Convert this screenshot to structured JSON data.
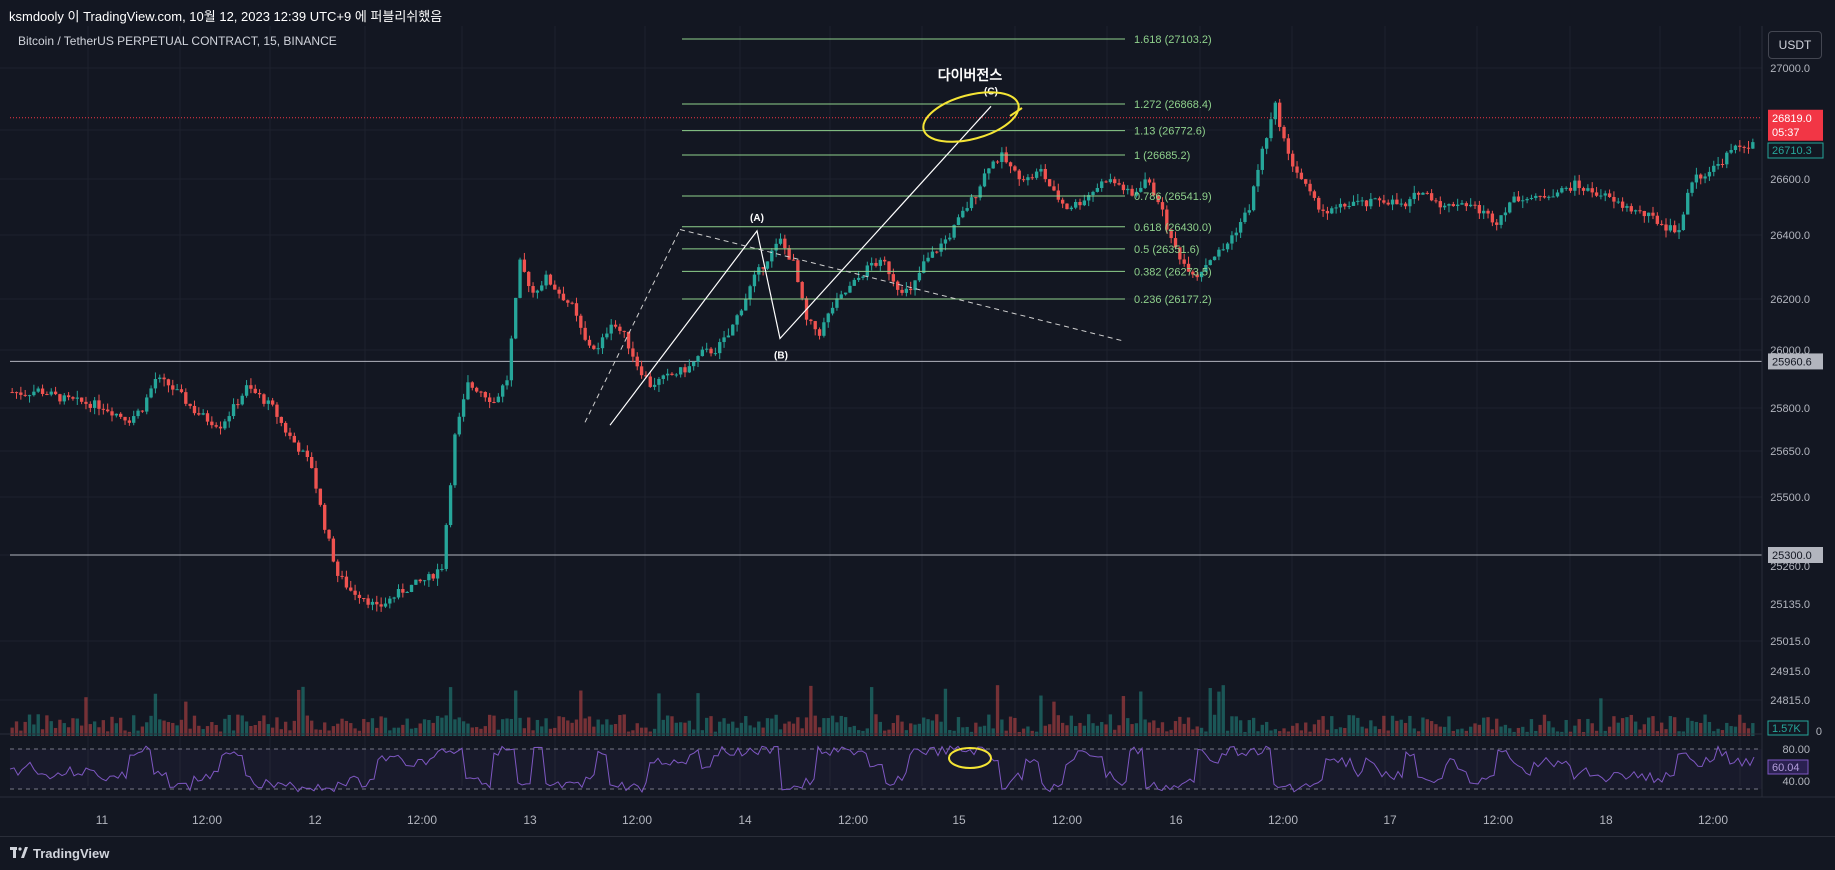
{
  "header": {
    "caption": "ksmdooly 이 TradingView.com, 10월 12, 2023 12:39 UTC+9 에 퍼블리쉬했음"
  },
  "chart_title": "Bitcoin / TetherUS PERPETUAL CONTRACT, 15, BINANCE",
  "currency_button": "USDT",
  "footer": {
    "brand": "TradingView"
  },
  "colors": {
    "up": "#26a69a",
    "down": "#ef5350",
    "fib": "#8fd18c",
    "rsi": "#7e57c2",
    "annotation": "#f5e535",
    "bg": "#131722"
  },
  "chart_data": {
    "type": "candlestick",
    "title": "Bitcoin / TetherUS PERPETUAL CONTRACT, 15, BINANCE",
    "price_ticks": [
      "27000.0",
      "26600.0",
      "26400.0",
      "26200.0",
      "26000.0",
      "25800.0",
      "25650.0",
      "25500.0",
      "25260.0",
      "25135.0",
      "25015.0",
      "24915.0",
      "24815.0"
    ],
    "volume_tick": "0",
    "time_ticks": [
      "11",
      "12:00",
      "12",
      "12:00",
      "13",
      "12:00",
      "14",
      "12:00",
      "15",
      "12:00",
      "16",
      "12:00",
      "17",
      "12:00",
      "18",
      "12:00"
    ],
    "last_price": {
      "price": "26819.0",
      "countdown": "05:37"
    },
    "secondary_price": "26710.3",
    "volume_label": "1.57K",
    "horizontal_levels": [
      {
        "price": 25960.6,
        "label": "25960.6"
      },
      {
        "price": 25300.0,
        "label": "25300.0"
      }
    ],
    "fibonacci": [
      {
        "label": "1.618 (27103.2)",
        "price": 27103.2
      },
      {
        "label": "1.272 (26868.4)",
        "price": 26868.4
      },
      {
        "label": "1.13 (26772.6)",
        "price": 26772.6
      },
      {
        "label": "1 (26685.2)",
        "price": 26685.2
      },
      {
        "label": "0.786 (26541.9)",
        "price": 26541.9
      },
      {
        "label": "0.618 (26430.0)",
        "price": 26430.0
      },
      {
        "label": "0.5 (26351.6)",
        "price": 26351.6
      },
      {
        "label": "0.382 (26273.5)",
        "price": 26273.5
      },
      {
        "label": "0.236 (26177.2)",
        "price": 26177.2
      }
    ],
    "wave_labels": [
      "(A)",
      "(B)",
      "(C)"
    ],
    "annotation": "다이버전스",
    "rsi": {
      "value": "60.04",
      "ticks": [
        "80.00",
        "40.00"
      ]
    },
    "close_series": [
      25855,
      25850,
      25862,
      25845,
      25830,
      25822,
      25815,
      25805,
      25780,
      25760,
      25800,
      25900,
      25880,
      25840,
      25790,
      25760,
      25740,
      25800,
      25870,
      25840,
      25800,
      25720,
      25660,
      25600,
      25400,
      25230,
      25180,
      25160,
      25120,
      25150,
      25180,
      25200,
      25220,
      25260,
      25700,
      25880,
      25860,
      25820,
      25900,
      26300,
      26200,
      26250,
      26200,
      26150,
      26030,
      26000,
      26100,
      26050,
      25950,
      25880,
      25900,
      25920,
      25940,
      25990,
      26000,
      26050,
      26150,
      26250,
      26320,
      26380,
      26300,
      26100,
      26060,
      26150,
      26200,
      26250,
      26300,
      26300,
      26220,
      26200,
      26300,
      26350,
      26400,
      26480,
      26550,
      26650,
      26680,
      26620,
      26600,
      26630,
      26550,
      26500,
      26520,
      26560,
      26600,
      26580,
      26540,
      26600,
      26530,
      26380,
      26300,
      26260,
      26320,
      26350,
      26420,
      26500,
      26700,
      26860,
      26680,
      26600,
      26520,
      26480,
      26500,
      26520,
      26510,
      26530,
      26520,
      26500,
      26560,
      26540,
      26500,
      26520,
      26510,
      26480,
      26450,
      26520,
      26540,
      26530,
      26550,
      26560,
      26580,
      26560,
      26550,
      26520,
      26500,
      26480,
      26460,
      26430,
      26420,
      26600,
      26620,
      26650,
      26700,
      26720
    ]
  }
}
